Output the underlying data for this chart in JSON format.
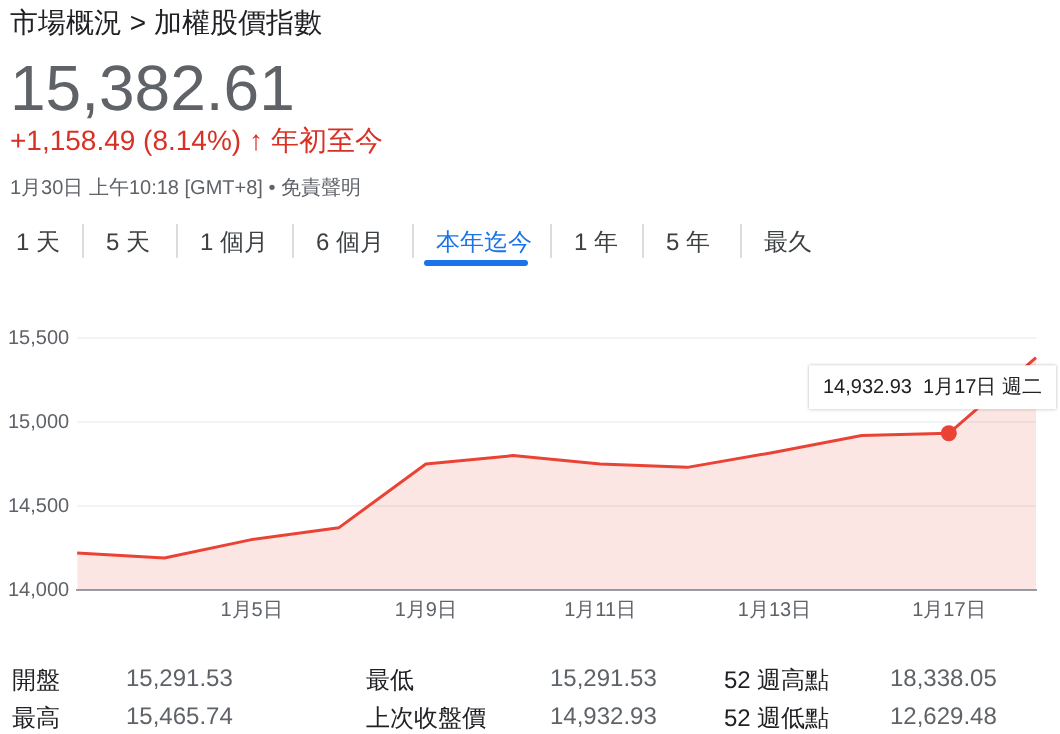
{
  "chart_data": {
    "type": "area",
    "title": "市場概況 > 加權股價指數",
    "categories": [
      null,
      null,
      "1月5日",
      null,
      "1月9日",
      null,
      "1月11日",
      null,
      "1月13日",
      null,
      "1月17日",
      null
    ],
    "series": [
      {
        "color": "#ea4335",
        "values": [
          14220,
          14190,
          14300,
          14370,
          14750,
          14800,
          14750,
          14730,
          14820,
          14920,
          14932.93,
          15382.61
        ]
      }
    ],
    "ylim": [
      14000,
      15500
    ],
    "yticks": [
      {
        "value": 14000,
        "label": "14,000"
      },
      {
        "value": 14500,
        "label": "14,500"
      },
      {
        "value": 15000,
        "label": "15,000"
      },
      {
        "value": 15500,
        "label": "15,500"
      }
    ],
    "grid": "y",
    "legend": false,
    "marker": "none",
    "line_style": "solid",
    "annotations": [
      "15,382.61",
      "+1,158.49 (8.14%) ↑ 年初至今",
      "1月30日 上午10:18 [GMT+8] • 免責聲明",
      "1 天",
      "5 天",
      "1 個月",
      "6 個月",
      "本年迄今",
      "1 年",
      "5 年",
      "最久",
      "開盤",
      "15,291.53",
      "最低",
      "15,291.53",
      "52 週高點",
      "18,338.05",
      "最高",
      "15,465.74",
      "上次收盤價",
      "14,932.93",
      "52 週低點",
      "12,629.48",
      {
        "text": "14,932.93  1月17日 週二",
        "x": "1月17日",
        "y": 14932.93
      }
    ]
  }
}
